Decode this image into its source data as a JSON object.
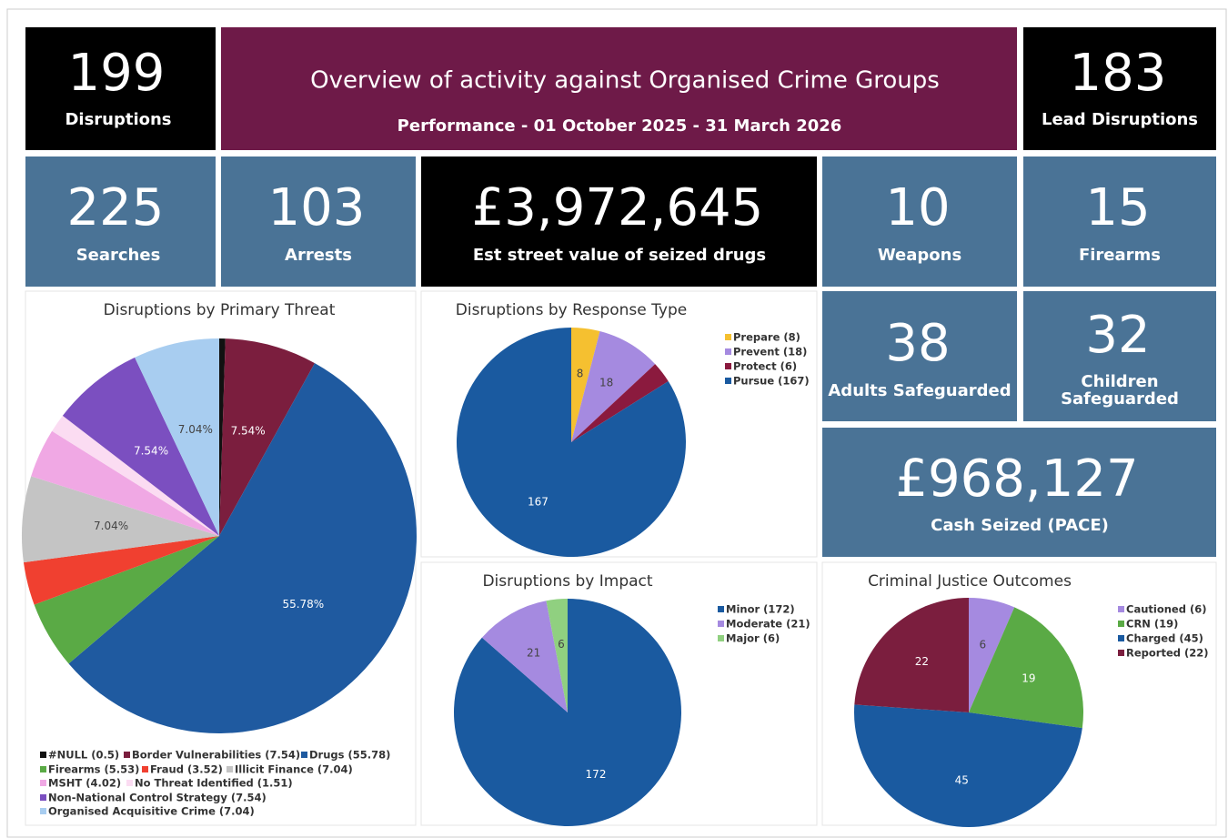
{
  "header": {
    "title": "Overview of activity against Organised Crime Groups",
    "subtitle": "Performance - 01 October 2025 - 31 March 2026"
  },
  "tiles": [
    {
      "value": "199",
      "label": "Disruptions"
    },
    {
      "value": "183",
      "label": "Lead Disruptions"
    },
    {
      "value": "225",
      "label": "Searches"
    },
    {
      "value": "103",
      "label": "Arrests"
    },
    {
      "value": "£3,972,645",
      "label": "Est street value of seized drugs"
    },
    {
      "value": "10",
      "label": "Weapons"
    },
    {
      "value": "15",
      "label": "Firearms"
    },
    {
      "value": "38",
      "label": "Adults Safeguarded"
    },
    {
      "value": "32",
      "label": "Children Safeguarded"
    },
    {
      "value": "£968,127",
      "label": "Cash Seized (PACE)"
    }
  ],
  "chart_data": [
    {
      "type": "pie",
      "title": "Disruptions by Primary Threat",
      "categories": [
        "#NULL (0.5)",
        "Border Vulnerabilities (7.54)",
        "Drugs (55.78)",
        "Firearms (5.53)",
        "Fraud (3.52)",
        "Illicit Finance (7.04)",
        "MSHT (4.02)",
        "No Threat Identified (1.51)",
        "Non-National Control Strategy (7.54)",
        "Organised Acquisitive Crime (7.04)"
      ],
      "values": [
        0.5,
        7.54,
        55.78,
        5.53,
        3.52,
        7.04,
        4.02,
        1.51,
        7.54,
        7.04
      ],
      "value_labels": [
        null,
        "7.54%",
        "55.78%",
        null,
        null,
        "7.04%",
        null,
        null,
        "7.54%",
        "7.04%"
      ],
      "colors": [
        "#111111",
        "#7b1e3e",
        "#1f5aa0",
        "#5aaa45",
        "#f04030",
        "#c4c4c4",
        "#f0a8e4",
        "#fbdcf2",
        "#7b4fc0",
        "#a8cdf0"
      ]
    },
    {
      "type": "pie",
      "title": "Disruptions by Response Type",
      "categories": [
        "Prepare (8)",
        "Prevent (18)",
        "Protect (6)",
        "Pursue (167)"
      ],
      "values": [
        8,
        18,
        6,
        167
      ],
      "value_labels": [
        "8",
        "18",
        null,
        "167"
      ],
      "colors": [
        "#f5c030",
        "#a58ae0",
        "#8b1a3e",
        "#1a5aa0"
      ]
    },
    {
      "type": "pie",
      "title": "Disruptions by Impact",
      "categories": [
        "Minor (172)",
        "Moderate (21)",
        "Major (6)"
      ],
      "values": [
        172,
        21,
        6
      ],
      "value_labels": [
        "172",
        "21",
        "6"
      ],
      "colors": [
        "#1a5aa0",
        "#a58ae0",
        "#90d080"
      ]
    },
    {
      "type": "pie",
      "title": "Criminal Justice Outcomes",
      "categories": [
        "Cautioned (6)",
        "CRN (19)",
        "Charged (45)",
        "Reported (22)"
      ],
      "values": [
        6,
        19,
        45,
        22
      ],
      "value_labels": [
        "6",
        "19",
        "45",
        "22"
      ],
      "colors": [
        "#a58ae0",
        "#5aaa45",
        "#1a5aa0",
        "#7b1e3e"
      ]
    }
  ]
}
